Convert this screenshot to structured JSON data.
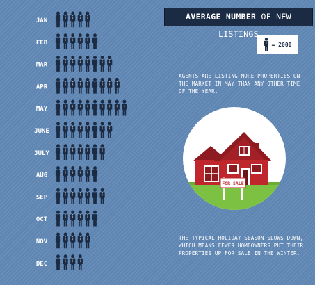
{
  "title": {
    "part1": "Average Number",
    "part2": " of New Listings"
  },
  "legend": {
    "label": "= 2000",
    "icon": "person-icon"
  },
  "notes": {
    "may": "Agents are listing more properties on the market in May than any other time of the year.",
    "winter": "The typical holiday season slows down, which means fewer homeowners put their properties up for sale in the winter."
  },
  "house": {
    "sign": "For Sale",
    "icon": "house-for-sale-icon"
  },
  "colors": {
    "background": "#5f86b3",
    "icon": "#1b2b44",
    "title_bg": "#1b2b44",
    "house_red": "#c0272d",
    "grass": "#7dc142"
  },
  "chart_data": {
    "type": "pictograph",
    "unit": "2000",
    "title": "Average Number of New Listings",
    "categories": [
      "JAN",
      "FEB",
      "MAR",
      "APR",
      "MAY",
      "JUNE",
      "JULY",
      "AUG",
      "SEP",
      "OCT",
      "NOV",
      "DEC"
    ],
    "values": [
      5,
      6,
      8,
      9,
      10,
      8,
      7,
      6,
      7,
      6,
      5,
      4
    ]
  }
}
